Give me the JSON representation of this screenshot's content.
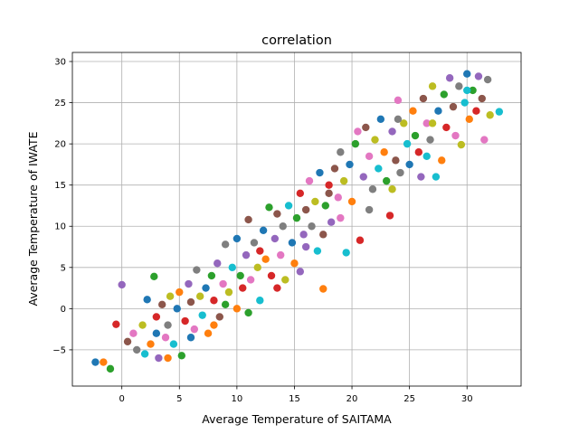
{
  "chart_data": {
    "type": "scatter",
    "title": "correlation",
    "xlabel": "Average Temperature of SAITAMA",
    "ylabel": "Average Temperature of IWATE",
    "xlim": [
      -4.3,
      34.7
    ],
    "ylim": [
      -9.4,
      31.1
    ],
    "xticks": [
      0,
      5,
      10,
      15,
      20,
      25,
      30
    ],
    "yticks": [
      -5,
      0,
      5,
      10,
      15,
      20,
      25,
      30
    ],
    "grid": true,
    "colors": [
      "#1f77b4",
      "#ff7f0e",
      "#2ca02c",
      "#d62728",
      "#9467bd",
      "#8c564b",
      "#e377c2",
      "#7f7f7f",
      "#bcbd22",
      "#17becf"
    ],
    "points": [
      [
        -2.3,
        -6.5
      ],
      [
        -1.6,
        -6.5
      ],
      [
        -1.0,
        -7.3
      ],
      [
        -0.5,
        -1.9
      ],
      [
        0.0,
        2.9
      ],
      [
        0.5,
        -4.0
      ],
      [
        1.0,
        -3.0
      ],
      [
        1.3,
        -5.0
      ],
      [
        1.8,
        -2.0
      ],
      [
        2.0,
        -5.5
      ],
      [
        2.2,
        1.1
      ],
      [
        2.5,
        -4.3
      ],
      [
        2.8,
        3.9
      ],
      [
        3.0,
        -1.0
      ],
      [
        3.2,
        -6.0
      ],
      [
        3.5,
        0.5
      ],
      [
        3.8,
        -3.5
      ],
      [
        4.0,
        -2.0
      ],
      [
        4.2,
        1.5
      ],
      [
        4.5,
        -4.3
      ],
      [
        4.8,
        0.0
      ],
      [
        5.0,
        2.0
      ],
      [
        5.2,
        -5.7
      ],
      [
        5.5,
        -1.5
      ],
      [
        5.8,
        3.0
      ],
      [
        6.0,
        0.8
      ],
      [
        6.3,
        -2.5
      ],
      [
        6.5,
        4.7
      ],
      [
        6.8,
        1.5
      ],
      [
        7.0,
        -0.8
      ],
      [
        7.3,
        2.5
      ],
      [
        7.5,
        -3.0
      ],
      [
        7.8,
        4.0
      ],
      [
        8.0,
        1.0
      ],
      [
        8.3,
        5.5
      ],
      [
        8.5,
        -1.0
      ],
      [
        8.8,
        3.0
      ],
      [
        9.0,
        7.8
      ],
      [
        9.3,
        2.0
      ],
      [
        9.6,
        5.0
      ],
      [
        10.0,
        8.5
      ],
      [
        10.0,
        0.0
      ],
      [
        10.3,
        4.0
      ],
      [
        10.5,
        2.5
      ],
      [
        10.8,
        6.5
      ],
      [
        11.0,
        10.8
      ],
      [
        11.2,
        3.5
      ],
      [
        11.5,
        8.0
      ],
      [
        11.8,
        5.0
      ],
      [
        12.0,
        1.0
      ],
      [
        12.3,
        9.5
      ],
      [
        12.5,
        6.0
      ],
      [
        12.8,
        12.3
      ],
      [
        13.0,
        4.0
      ],
      [
        13.3,
        8.5
      ],
      [
        13.5,
        11.5
      ],
      [
        13.8,
        6.5
      ],
      [
        14.0,
        10.0
      ],
      [
        14.2,
        3.5
      ],
      [
        14.5,
        12.5
      ],
      [
        14.8,
        8.0
      ],
      [
        15.0,
        5.5
      ],
      [
        15.2,
        11.0
      ],
      [
        15.5,
        14.0
      ],
      [
        15.8,
        9.0
      ],
      [
        16.0,
        12.0
      ],
      [
        16.3,
        15.5
      ],
      [
        16.5,
        10.0
      ],
      [
        16.8,
        13.0
      ],
      [
        17.0,
        7.0
      ],
      [
        17.2,
        16.5
      ],
      [
        17.5,
        2.4
      ],
      [
        17.7,
        12.5
      ],
      [
        18.0,
        15.0
      ],
      [
        18.2,
        10.5
      ],
      [
        18.5,
        17.0
      ],
      [
        18.8,
        13.5
      ],
      [
        19.0,
        19.0
      ],
      [
        19.3,
        15.5
      ],
      [
        19.5,
        6.8
      ],
      [
        19.8,
        17.5
      ],
      [
        20.0,
        13.0
      ],
      [
        20.3,
        20.0
      ],
      [
        20.7,
        8.3
      ],
      [
        21.0,
        16.0
      ],
      [
        21.2,
        22.0
      ],
      [
        21.5,
        18.5
      ],
      [
        21.8,
        14.5
      ],
      [
        22.0,
        20.5
      ],
      [
        22.3,
        17.0
      ],
      [
        22.5,
        23.0
      ],
      [
        22.8,
        19.0
      ],
      [
        23.0,
        15.5
      ],
      [
        23.3,
        11.3
      ],
      [
        23.5,
        21.5
      ],
      [
        23.8,
        18.0
      ],
      [
        24.0,
        25.3
      ],
      [
        24.2,
        16.5
      ],
      [
        24.5,
        22.5
      ],
      [
        24.8,
        20.0
      ],
      [
        25.0,
        17.5
      ],
      [
        25.3,
        24.0
      ],
      [
        25.5,
        21.0
      ],
      [
        25.8,
        19.0
      ],
      [
        26.0,
        16.0
      ],
      [
        26.2,
        25.5
      ],
      [
        26.5,
        22.5
      ],
      [
        26.8,
        20.5
      ],
      [
        27.0,
        27.0
      ],
      [
        27.3,
        16.0
      ],
      [
        27.5,
        24.0
      ],
      [
        27.8,
        18.0
      ],
      [
        28.0,
        26.0
      ],
      [
        28.2,
        22.0
      ],
      [
        28.5,
        28.0
      ],
      [
        28.8,
        24.5
      ],
      [
        29.0,
        21.0
      ],
      [
        29.3,
        27.0
      ],
      [
        29.5,
        19.9
      ],
      [
        29.8,
        25.0
      ],
      [
        30.0,
        28.5
      ],
      [
        30.2,
        23.0
      ],
      [
        30.5,
        26.5
      ],
      [
        30.8,
        24.0
      ],
      [
        31.0,
        28.2
      ],
      [
        31.3,
        25.5
      ],
      [
        31.5,
        20.5
      ],
      [
        31.8,
        27.8
      ],
      [
        32.0,
        23.5
      ],
      [
        32.8,
        23.9
      ],
      [
        6.0,
        -3.5
      ],
      [
        8.0,
        -2.0
      ],
      [
        11.0,
        -0.5
      ],
      [
        13.5,
        2.5
      ],
      [
        15.5,
        4.5
      ],
      [
        17.5,
        9.0
      ],
      [
        19.0,
        11.0
      ],
      [
        21.5,
        12.0
      ],
      [
        23.5,
        14.5
      ],
      [
        26.5,
        18.5
      ],
      [
        3.0,
        -3.0
      ],
      [
        4.0,
        -6.0
      ],
      [
        9.0,
        0.5
      ],
      [
        12.0,
        7.0
      ],
      [
        16.0,
        7.5
      ],
      [
        18.0,
        14.0
      ],
      [
        20.5,
        21.5
      ],
      [
        24.0,
        23.0
      ],
      [
        27.0,
        22.5
      ],
      [
        30.0,
        26.5
      ]
    ]
  }
}
